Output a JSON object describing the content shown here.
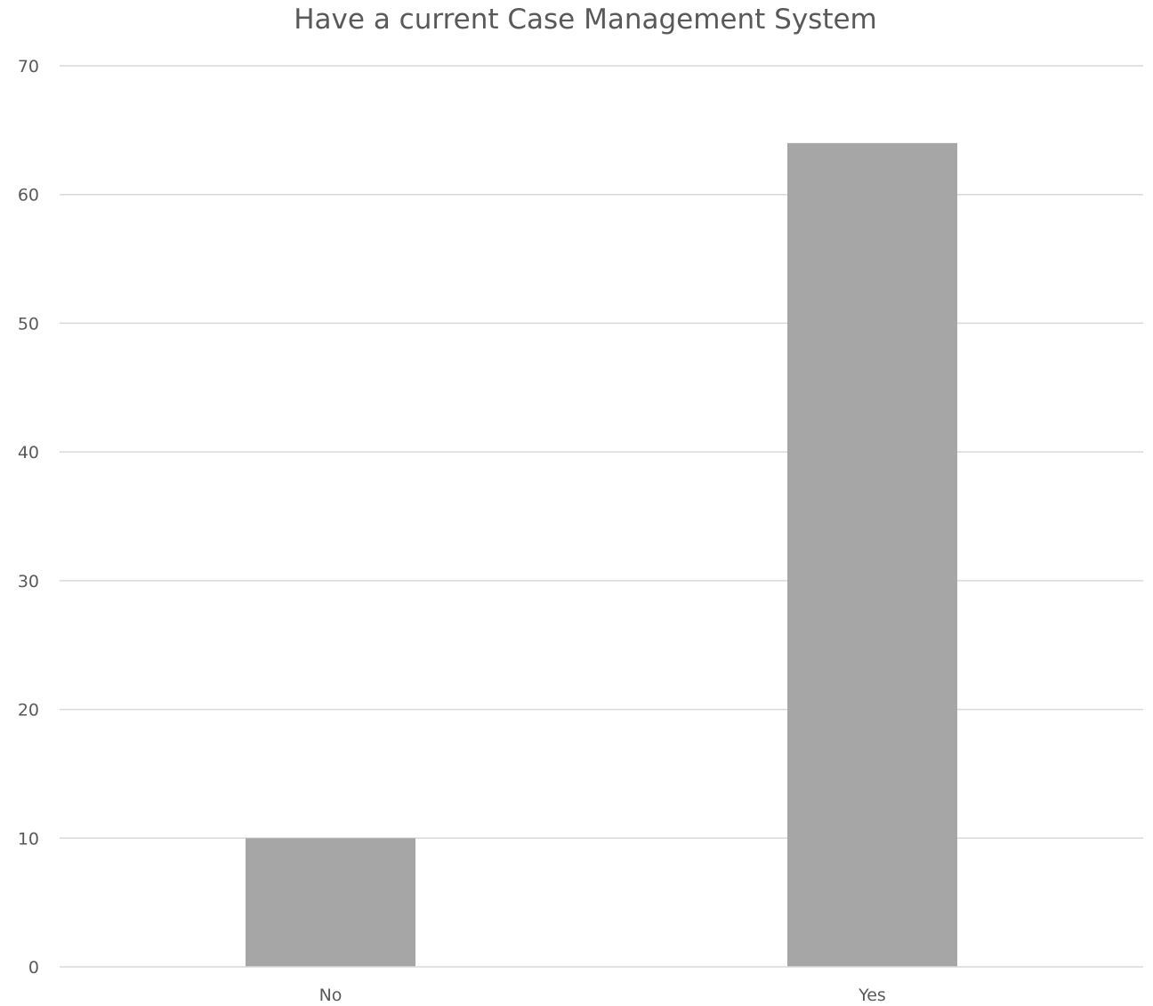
{
  "chart_data": {
    "type": "bar",
    "title": "Have a current Case Management System",
    "categories": [
      "No",
      "Yes"
    ],
    "values": [
      10,
      64
    ],
    "ylim": [
      0,
      70
    ],
    "yticks": [
      0,
      10,
      20,
      30,
      40,
      50,
      60,
      70
    ],
    "xlabel": "",
    "ylabel": "",
    "grid": true,
    "legend": "none",
    "bar_color": "#a6a6a6"
  }
}
